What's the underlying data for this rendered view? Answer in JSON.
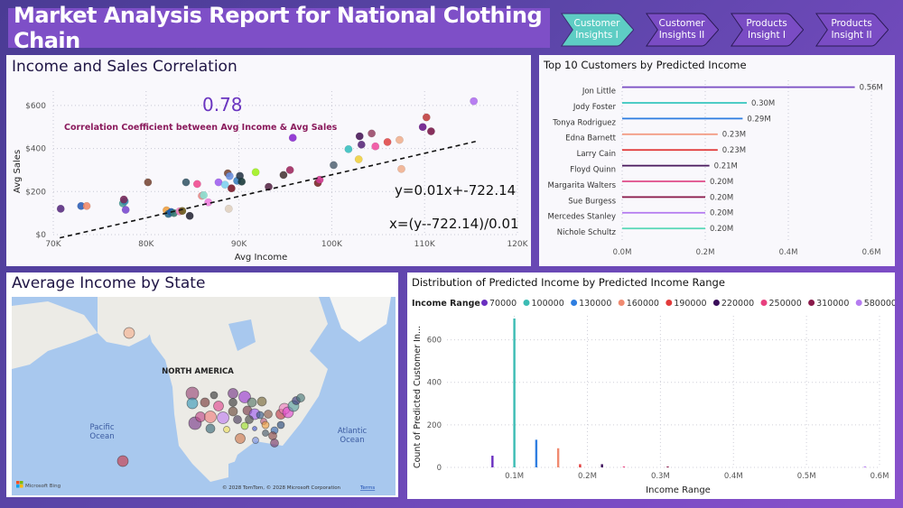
{
  "header": {
    "title": "Market Analysis Report for National Clothing Chain",
    "nav": [
      {
        "label_line1": "Customer",
        "label_line2": "Insights I",
        "active": true
      },
      {
        "label_line1": "Customer",
        "label_line2": "Insights II",
        "active": false
      },
      {
        "label_line1": "Products",
        "label_line2": "Insight I",
        "active": false
      },
      {
        "label_line1": "Products",
        "label_line2": "Insight II",
        "active": false
      }
    ]
  },
  "colors": {
    "accent_active": "#5ecdc4",
    "title_bg": "#7e4fc7",
    "correlation_value": "#6a35c0",
    "correlation_label": "#8a1a5c"
  },
  "scatter_panel": {
    "title": "Income and Sales Correlation",
    "correlation_value": "0.78",
    "correlation_label": "Correlation Coefficient between Avg Income & Avg Sales",
    "equation_y": "y=0.01x+-722.14",
    "equation_x": "x=(y--722.14)/0.01"
  },
  "bar_panel": {
    "title": "Top 10 Customers by Predicted Income"
  },
  "map_panel": {
    "title": "Average Income by State",
    "continent_label": "NORTH AMERICA",
    "pacific_label_1": "Pacific",
    "pacific_label_2": "Ocean",
    "atlantic_label_1": "Atlantic",
    "atlantic_label_2": "Ocean",
    "bing_label": "Microsoft Bing",
    "copyright": "© 2028 TomTom, © 2028 Microsoft Corporation",
    "terms_link": "Terms"
  },
  "hist_panel": {
    "title": "Distribution of Predicted Income by Predicted Income Range",
    "legend_title": "Income Range"
  },
  "chart_data": [
    {
      "type": "scatter",
      "title": "Income and Sales Correlation",
      "xlabel": "Avg Income",
      "ylabel": "Avg Sales",
      "xlim": [
        70000,
        120000
      ],
      "ylim": [
        0,
        650
      ],
      "xticks": [
        "70K",
        "80K",
        "90K",
        "100K",
        "110K",
        "120K"
      ],
      "xtick_values": [
        70000,
        80000,
        90000,
        100000,
        110000,
        120000
      ],
      "yticks": [
        "$0",
        "$200",
        "$400",
        "$600"
      ],
      "ytick_values": [
        0,
        200,
        400,
        600
      ],
      "grid": true,
      "trendline": {
        "slope": 0.01,
        "intercept": -722.14,
        "style": "dashed",
        "x_range": [
          70700,
          115500
        ]
      },
      "points": [
        {
          "x": 70800,
          "y": 120,
          "color": "#5a2d82"
        },
        {
          "x": 73000,
          "y": 133,
          "color": "#2d5fb8"
        },
        {
          "x": 73600,
          "y": 133,
          "color": "#f08a6a"
        },
        {
          "x": 77500,
          "y": 145,
          "color": "#4aa09a"
        },
        {
          "x": 77700,
          "y": 155,
          "color": "#3a8ab0"
        },
        {
          "x": 77600,
          "y": 163,
          "color": "#7a2a5c"
        },
        {
          "x": 77800,
          "y": 115,
          "color": "#7a4ad0"
        },
        {
          "x": 80200,
          "y": 243,
          "color": "#7a4a3a"
        },
        {
          "x": 82200,
          "y": 113,
          "color": "#f0a040"
        },
        {
          "x": 82400,
          "y": 96,
          "color": "#2a6a8a"
        },
        {
          "x": 82700,
          "y": 105,
          "color": "#1a5ab0"
        },
        {
          "x": 83000,
          "y": 100,
          "color": "#3a7a70"
        },
        {
          "x": 83600,
          "y": 108,
          "color": "#f080c0"
        },
        {
          "x": 83900,
          "y": 110,
          "color": "#6a5a1a"
        },
        {
          "x": 84700,
          "y": 87,
          "color": "#2a2a3a"
        },
        {
          "x": 84300,
          "y": 243,
          "color": "#3a5a6a"
        },
        {
          "x": 85500,
          "y": 235,
          "color": "#f04a90"
        },
        {
          "x": 86000,
          "y": 180,
          "color": "#f08a8a"
        },
        {
          "x": 86200,
          "y": 183,
          "color": "#8ae0d0"
        },
        {
          "x": 86700,
          "y": 150,
          "color": "#f080e0"
        },
        {
          "x": 87800,
          "y": 243,
          "color": "#a060f0"
        },
        {
          "x": 88500,
          "y": 232,
          "color": "#80d0f0"
        },
        {
          "x": 88800,
          "y": 285,
          "color": "#7a4a3a"
        },
        {
          "x": 89000,
          "y": 272,
          "color": "#6a90e0"
        },
        {
          "x": 88900,
          "y": 120,
          "color": "#e0d0c0"
        },
        {
          "x": 89200,
          "y": 215,
          "color": "#7a1a2a"
        },
        {
          "x": 89800,
          "y": 250,
          "color": "#3a80c0"
        },
        {
          "x": 90100,
          "y": 273,
          "color": "#2a3a4a"
        },
        {
          "x": 90300,
          "y": 246,
          "color": "#1a3a3a"
        },
        {
          "x": 91800,
          "y": 290,
          "color": "#a0f020"
        },
        {
          "x": 93200,
          "y": 222,
          "color": "#5a2a4a"
        },
        {
          "x": 94800,
          "y": 277,
          "color": "#4a3a3a"
        },
        {
          "x": 95500,
          "y": 300,
          "color": "#a02a60"
        },
        {
          "x": 95800,
          "y": 450,
          "color": "#8a2ad0"
        },
        {
          "x": 98500,
          "y": 240,
          "color": "#7a2a2a"
        },
        {
          "x": 98700,
          "y": 255,
          "color": "#d03a90"
        },
        {
          "x": 100200,
          "y": 323,
          "color": "#5a6a7a"
        },
        {
          "x": 101800,
          "y": 397,
          "color": "#3ac0c0"
        },
        {
          "x": 102900,
          "y": 350,
          "color": "#f0d040"
        },
        {
          "x": 103000,
          "y": 457,
          "color": "#4a1a5a"
        },
        {
          "x": 103200,
          "y": 418,
          "color": "#5a2a7a"
        },
        {
          "x": 104300,
          "y": 470,
          "color": "#9a4a6a"
        },
        {
          "x": 104700,
          "y": 410,
          "color": "#f050a0"
        },
        {
          "x": 106000,
          "y": 430,
          "color": "#e04a4a"
        },
        {
          "x": 107300,
          "y": 440,
          "color": "#f0b090"
        },
        {
          "x": 107500,
          "y": 305,
          "color": "#f0b090"
        },
        {
          "x": 109800,
          "y": 500,
          "color": "#6a1a8a"
        },
        {
          "x": 110200,
          "y": 545,
          "color": "#c04040"
        },
        {
          "x": 110700,
          "y": 480,
          "color": "#7a1a4a"
        },
        {
          "x": 115300,
          "y": 620,
          "color": "#b070f0"
        }
      ]
    },
    {
      "type": "bar",
      "orientation": "horizontal",
      "title": "Top 10 Customers by Predicted Income",
      "xlim": [
        0,
        0.6
      ],
      "xticks": [
        "0.0M",
        "0.2M",
        "0.4M",
        "0.6M"
      ],
      "xtick_values": [
        0,
        0.2,
        0.4,
        0.6
      ],
      "grid": true,
      "categories": [
        "Jon Little",
        "Jody Foster",
        "Tonya Rodriguez",
        "Edna Barnett",
        "Larry Cain",
        "Floyd Quinn",
        "Margarita Walters",
        "Sue Burgess",
        "Mercedes Stanley",
        "Nichole Schultz"
      ],
      "values": [
        0.56,
        0.3,
        0.29,
        0.23,
        0.23,
        0.21,
        0.2,
        0.2,
        0.2,
        0.2
      ],
      "labels": [
        "0.56M",
        "0.30M",
        "0.29M",
        "0.23M",
        "0.23M",
        "0.21M",
        "0.20M",
        "0.20M",
        "0.20M",
        "0.20M"
      ],
      "colors": [
        "#7b4fc4",
        "#3cc8c0",
        "#2f7ee0",
        "#f39a82",
        "#e23b3b",
        "#4a1a5e",
        "#e0508a",
        "#8a1a4a",
        "#b57cf0",
        "#5ad8b8"
      ]
    },
    {
      "type": "bar",
      "title": "Distribution of Predicted Income by Predicted Income Range",
      "xlabel": "Income Range",
      "ylabel": "Count of Predicted Customer In...",
      "xlim": [
        0.03,
        0.6
      ],
      "ylim": [
        0,
        700
      ],
      "xticks": [
        "0.1M",
        "0.2M",
        "0.3M",
        "0.4M",
        "0.5M",
        "0.6M"
      ],
      "xtick_values": [
        0.1,
        0.2,
        0.3,
        0.4,
        0.5,
        0.6
      ],
      "yticks": [
        "0",
        "200",
        "400",
        "600"
      ],
      "ytick_values": [
        0,
        200,
        400,
        600
      ],
      "grid": true,
      "legend_position": "top-left",
      "series": [
        {
          "name": "70000",
          "x": 0.07,
          "value": 55,
          "color": "#6a2fc0"
        },
        {
          "name": "100000",
          "x": 0.1,
          "value": 700,
          "color": "#3cbcb4"
        },
        {
          "name": "130000",
          "x": 0.13,
          "value": 130,
          "color": "#2f7ee0"
        },
        {
          "name": "160000",
          "x": 0.16,
          "value": 90,
          "color": "#f08a70"
        },
        {
          "name": "190000",
          "x": 0.19,
          "value": 15,
          "color": "#e23b3b"
        },
        {
          "name": "220000",
          "x": 0.22,
          "value": 15,
          "color": "#3a0e5a"
        },
        {
          "name": "250000",
          "x": 0.25,
          "value": 4,
          "color": "#e8407e"
        },
        {
          "name": "310000",
          "x": 0.31,
          "value": 2,
          "color": "#8a1a4a"
        },
        {
          "name": "580000",
          "x": 0.58,
          "value": 2,
          "color": "#b57cf0"
        }
      ]
    }
  ]
}
